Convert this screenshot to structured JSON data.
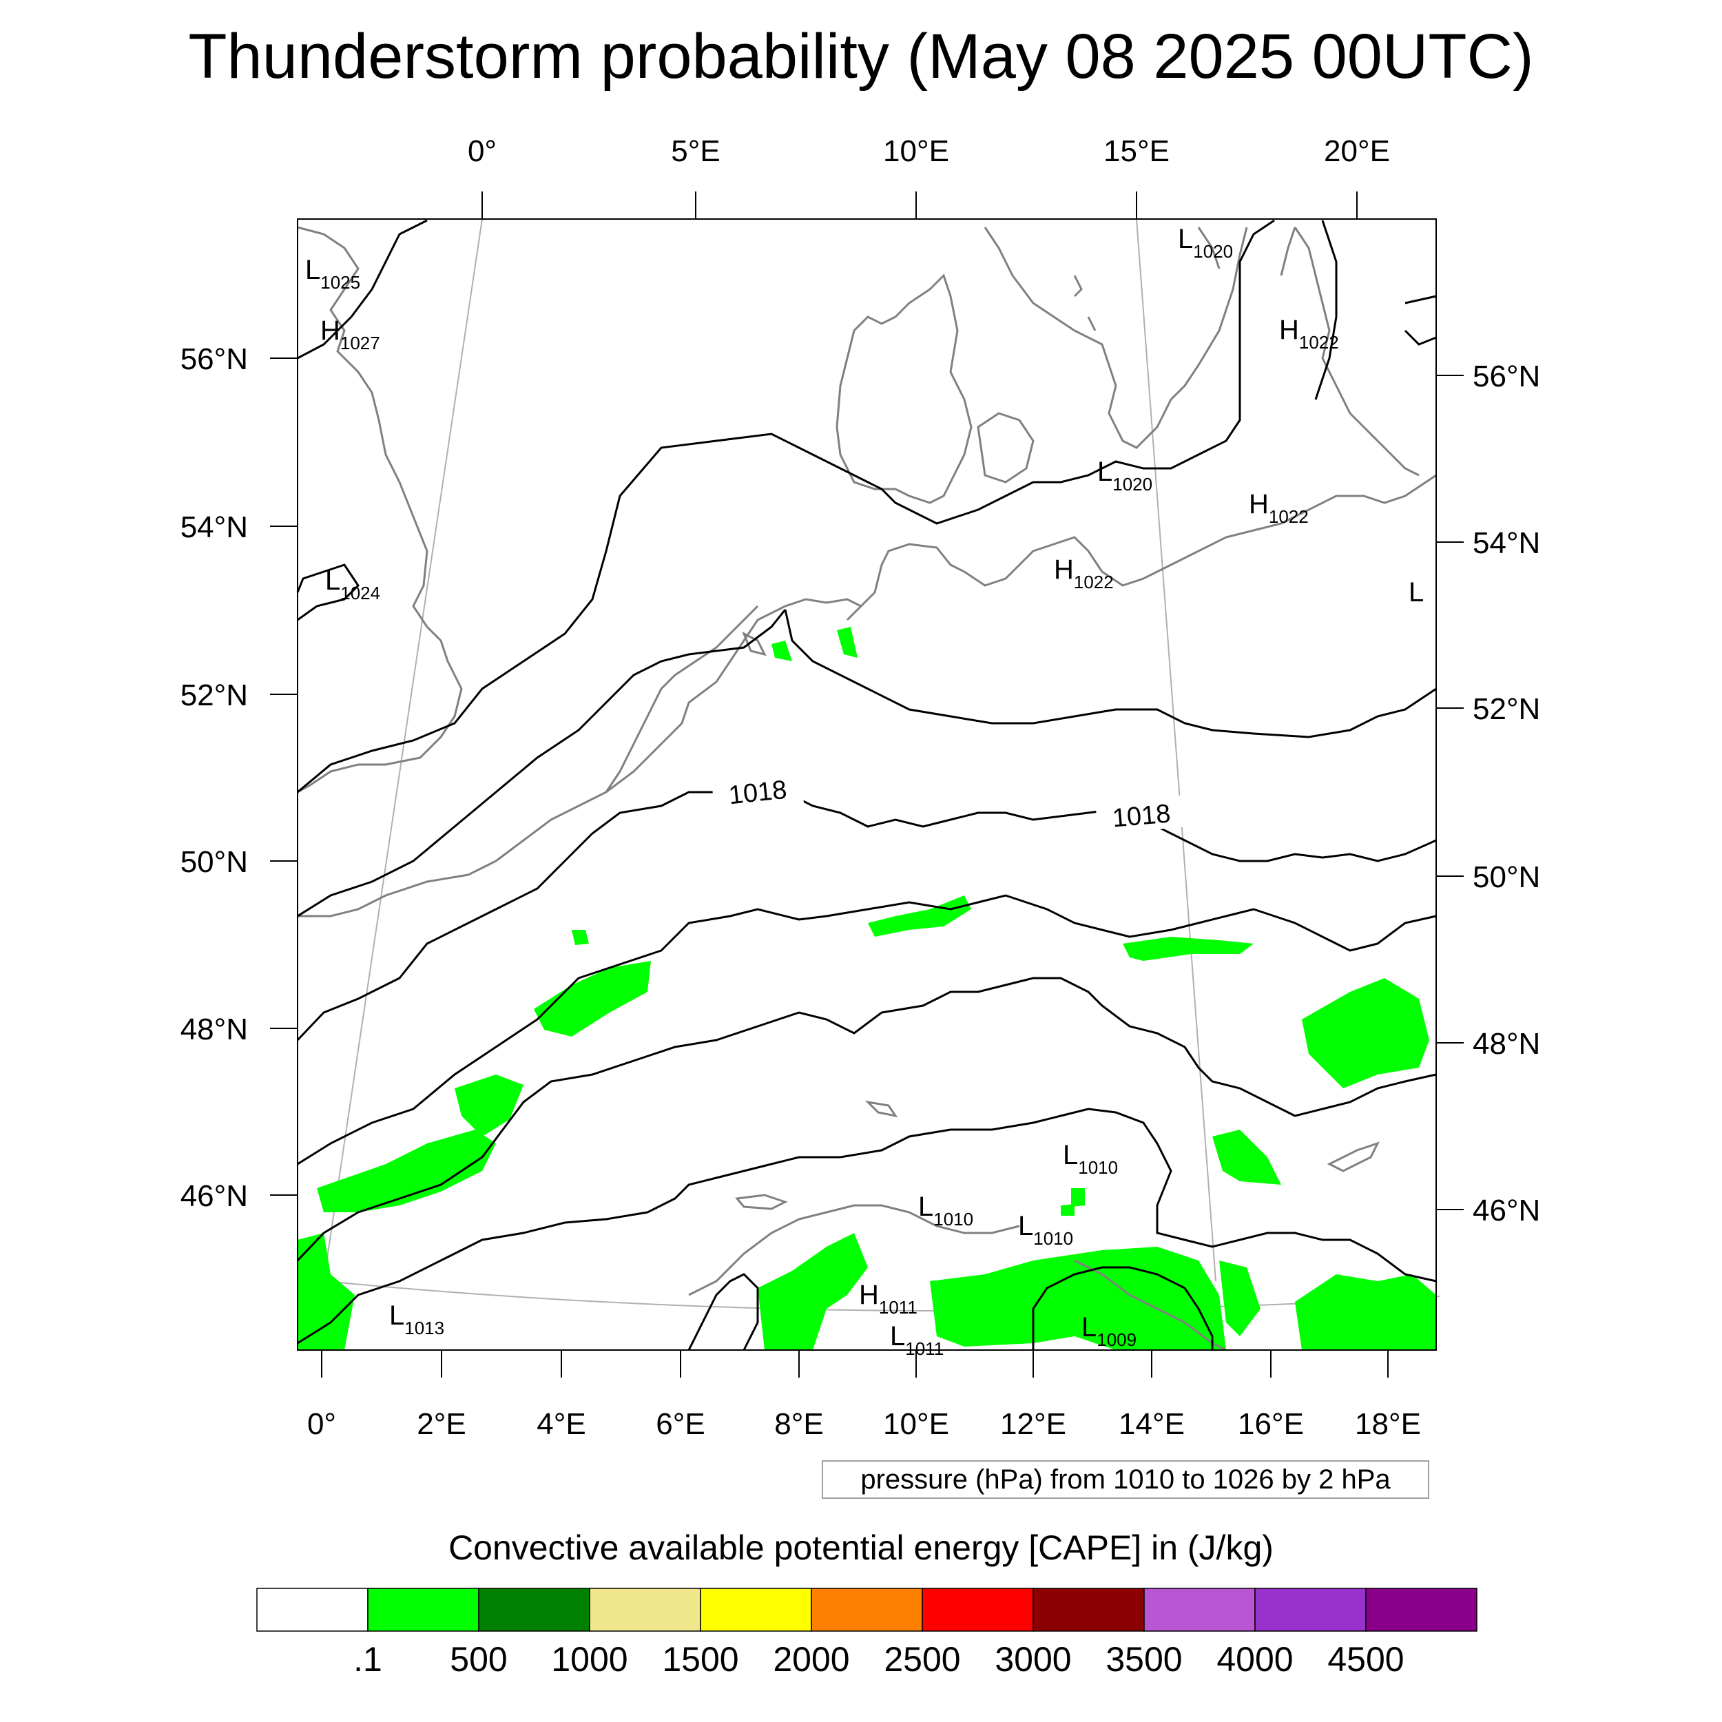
{
  "title": "Thunderstorm probability (May 08 2025 00UTC)",
  "top_lon_labels": [
    "0°",
    "5°E",
    "10°E",
    "15°E",
    "20°E"
  ],
  "bottom_lon_labels": [
    "0°",
    "2°E",
    "4°E",
    "6°E",
    "8°E",
    "10°E",
    "12°E",
    "14°E",
    "16°E",
    "18°E"
  ],
  "left_lat_labels": [
    "56°N",
    "54°N",
    "52°N",
    "50°N",
    "48°N",
    "46°N"
  ],
  "right_lat_labels": [
    "56°N",
    "54°N",
    "52°N",
    "50°N",
    "48°N",
    "46°N"
  ],
  "isobar_labels": [
    "1018",
    "1018"
  ],
  "pressure_centers": [
    {
      "type": "L",
      "value": "1025"
    },
    {
      "type": "H",
      "value": "1027"
    },
    {
      "type": "L",
      "value": "1024"
    },
    {
      "type": "L",
      "value": "1020"
    },
    {
      "type": "H",
      "value": "1022"
    },
    {
      "type": "L",
      "value": "1020"
    },
    {
      "type": "H",
      "value": "1022"
    },
    {
      "type": "H",
      "value": "1022"
    },
    {
      "type": "L",
      "value": ""
    },
    {
      "type": "L",
      "value": "1010"
    },
    {
      "type": "L",
      "value": "1010"
    },
    {
      "type": "L",
      "value": "1010"
    },
    {
      "type": "H",
      "value": "1011"
    },
    {
      "type": "L",
      "value": "1011"
    },
    {
      "type": "L",
      "value": "1009"
    },
    {
      "type": "L",
      "value": "1013"
    }
  ],
  "contour_note": "pressure (hPa) from 1010 to 1026 by 2 hPa",
  "colorbar": {
    "title": "Convective available potential energy [CAPE] in (J/kg)",
    "labels": [
      ".1",
      "500",
      "1000",
      "1500",
      "2000",
      "2500",
      "3000",
      "3500",
      "4000",
      "4500"
    ],
    "colors": [
      "#ffffff",
      "#00ff00",
      "#008000",
      "#f0e68c",
      "#ffff00",
      "#ff8000",
      "#ff0000",
      "#8b0000",
      "#ba55d3",
      "#9932cc",
      "#8b008b"
    ]
  },
  "colors": {
    "cape_fill": "#00ff00",
    "isobar": "#000000",
    "coastline": "#808080"
  }
}
